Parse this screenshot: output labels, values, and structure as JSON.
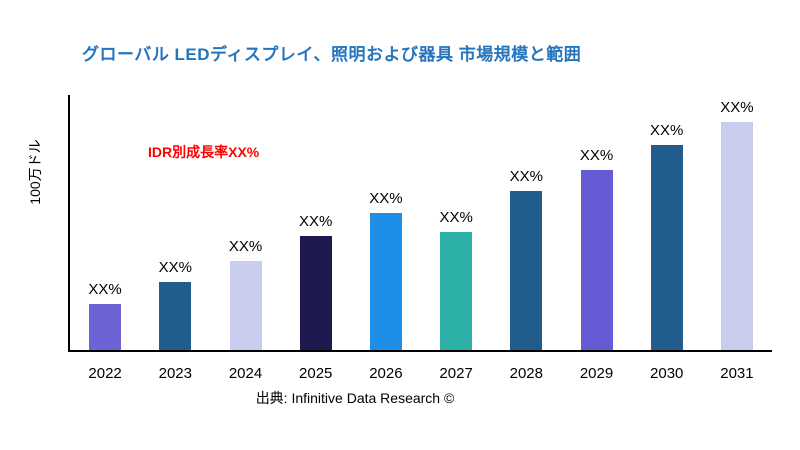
{
  "chart_data": {
    "type": "bar",
    "title": "グローバル LEDディスプレイ、照明および器具 市場規模と範囲",
    "annotation": "IDR別成長率XX%",
    "ylabel": "100万ドル",
    "xlabel": "",
    "source": "出典: Infinitive Data Research ©",
    "categories": [
      "2022",
      "2023",
      "2024",
      "2025",
      "2026",
      "2027",
      "2028",
      "2029",
      "2030",
      "2031"
    ],
    "values": [
      20,
      30,
      39,
      50,
      60,
      52,
      70,
      79,
      90,
      100
    ],
    "values_note": "Actual values not shown in chart; bars labeled XX%. Values are estimated relative heights.",
    "bar_labels": [
      "XX%",
      "XX%",
      "XX%",
      "XX%",
      "XX%",
      "XX%",
      "XX%",
      "XX%",
      "XX%",
      "XX%"
    ],
    "bar_colors": [
      "#6B63D6",
      "#215C8C",
      "#C8CCEE",
      "#1C1A4E",
      "#1E8FE8",
      "#2CB0A8",
      "#215C8C",
      "#655BD5",
      "#215C8C",
      "#C8CCEE"
    ],
    "ylim": [
      0,
      112
    ],
    "grid": false,
    "legend": "none",
    "colors": {
      "title": "#2575BE",
      "annotation": "#FF0000",
      "axis": "#000000",
      "labels": "#000000",
      "background": "#FFFFFF"
    }
  }
}
